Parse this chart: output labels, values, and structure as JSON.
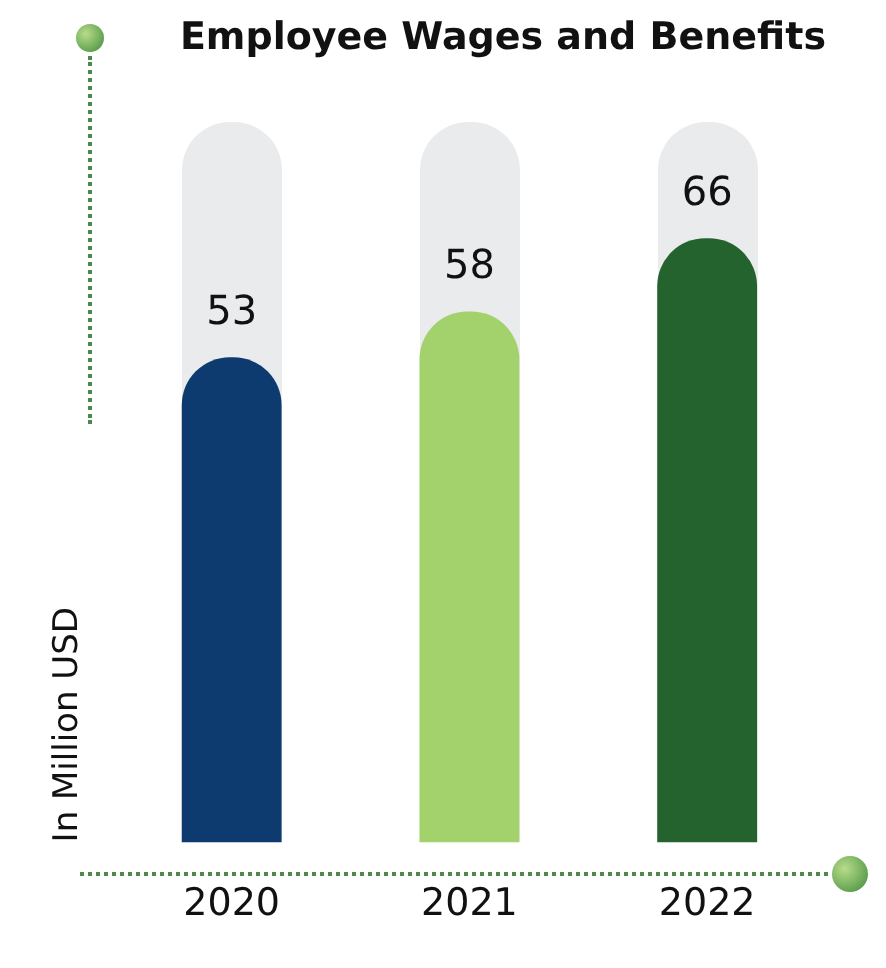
{
  "chart_data": {
    "type": "bar",
    "title": "Employee Wages and Benefits",
    "ylabel": "In Million USD",
    "categories": [
      "2020",
      "2021",
      "2022"
    ],
    "values": [
      53,
      58,
      66
    ],
    "colors": [
      "#0d3b70",
      "#a3d16b",
      "#24622e"
    ],
    "data_labels": true,
    "tick_labels": "x",
    "grid": false,
    "legend": false
  }
}
